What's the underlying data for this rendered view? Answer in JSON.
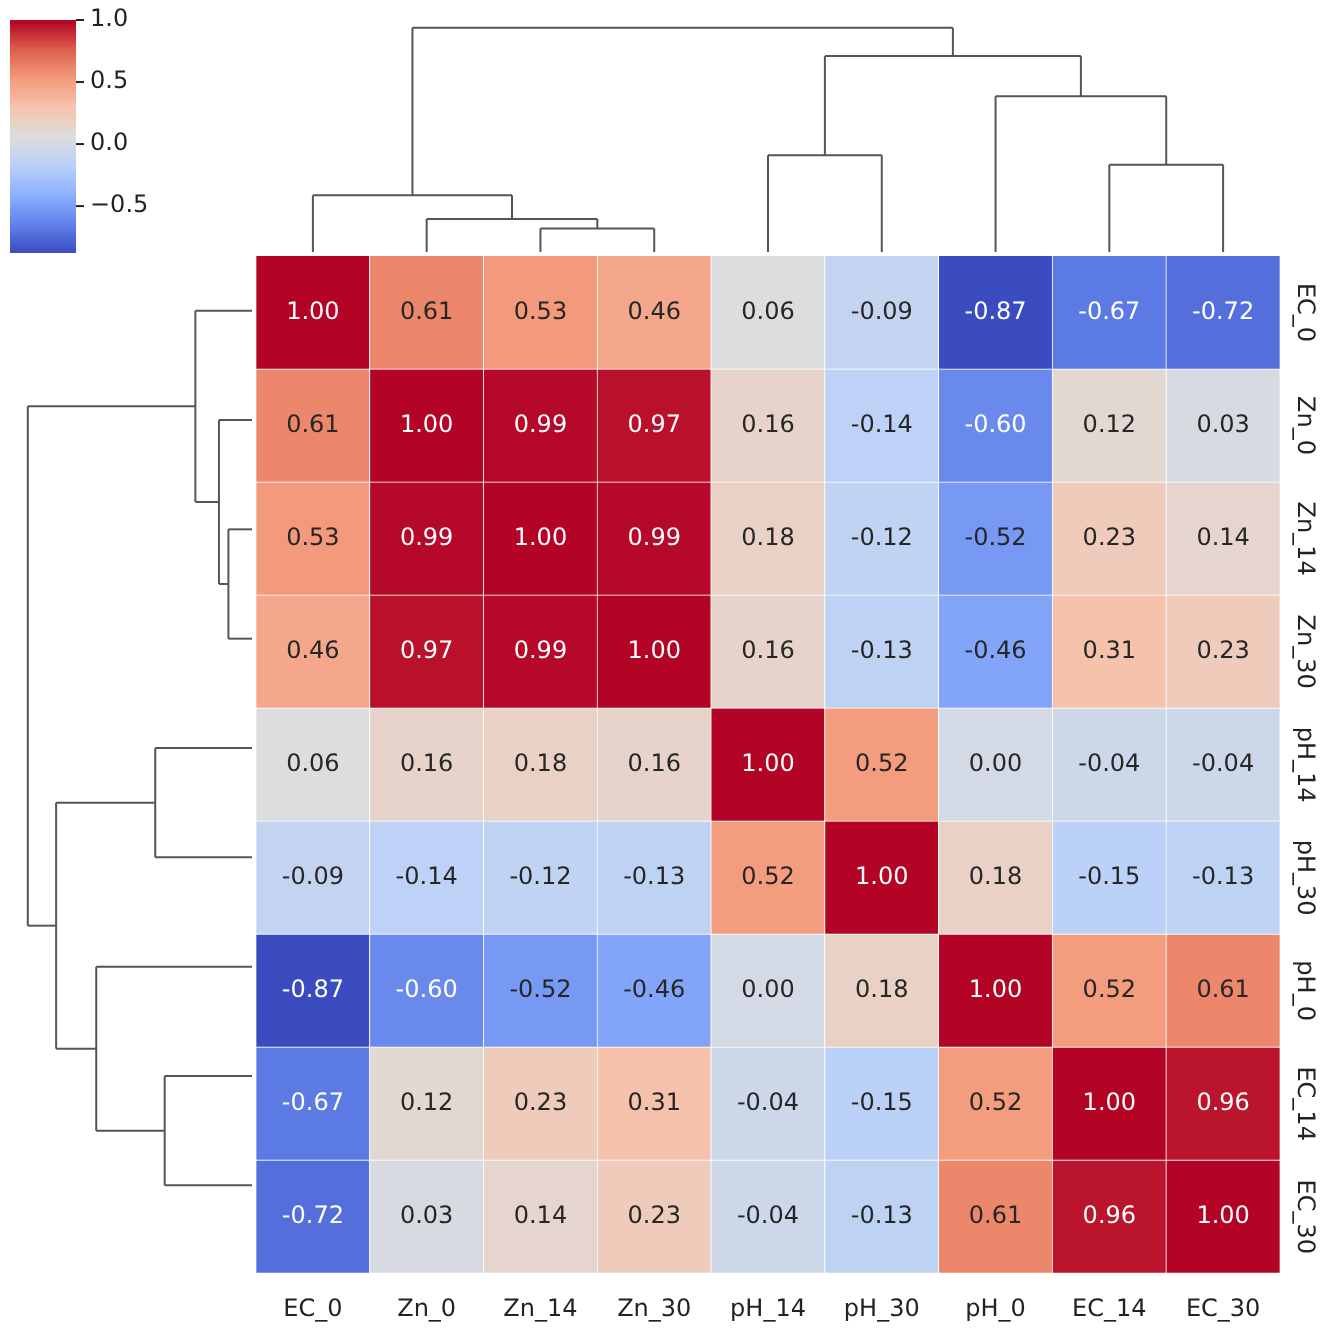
{
  "chart_data": {
    "type": "heatmap",
    "categories": [
      "EC_0",
      "Zn_0",
      "Zn_14",
      "Zn_30",
      "pH_14",
      "pH_30",
      "pH_0",
      "EC_14",
      "EC_30"
    ],
    "y_categories": [
      "EC_0",
      "Zn_0",
      "Zn_14",
      "Zn_30",
      "pH_14",
      "pH_30",
      "pH_0",
      "EC_14",
      "EC_30"
    ],
    "cells": [
      [
        1.0,
        0.61,
        0.53,
        0.46,
        0.06,
        -0.09,
        -0.87,
        -0.67,
        -0.72
      ],
      [
        0.61,
        1.0,
        0.99,
        0.97,
        0.16,
        -0.14,
        -0.6,
        0.12,
        0.03
      ],
      [
        0.53,
        0.99,
        1.0,
        0.99,
        0.18,
        -0.12,
        -0.52,
        0.23,
        0.14
      ],
      [
        0.46,
        0.97,
        0.99,
        1.0,
        0.16,
        -0.13,
        -0.46,
        0.31,
        0.23
      ],
      [
        0.06,
        0.16,
        0.18,
        0.16,
        1.0,
        0.52,
        0.0,
        -0.04,
        -0.04
      ],
      [
        -0.09,
        -0.14,
        -0.12,
        -0.13,
        0.52,
        1.0,
        0.18,
        -0.15,
        -0.13
      ],
      [
        -0.87,
        -0.6,
        -0.52,
        -0.46,
        0.0,
        0.18,
        1.0,
        0.52,
        0.61
      ],
      [
        -0.67,
        0.12,
        0.23,
        0.31,
        -0.04,
        -0.15,
        0.52,
        1.0,
        0.96
      ],
      [
        -0.72,
        0.03,
        0.14,
        0.23,
        -0.04,
        -0.13,
        0.61,
        0.96,
        1.0
      ]
    ],
    "cell_labels": [
      [
        "1.00",
        "0.61",
        "0.53",
        "0.46",
        "0.06",
        "-0.09",
        "-0.87",
        "-0.67",
        "-0.72"
      ],
      [
        "0.61",
        "1.00",
        "0.99",
        "0.97",
        "0.16",
        "-0.14",
        "-0.60",
        "0.12",
        "0.03"
      ],
      [
        "0.53",
        "0.99",
        "1.00",
        "0.99",
        "0.18",
        "-0.12",
        "-0.52",
        "0.23",
        "0.14"
      ],
      [
        "0.46",
        "0.97",
        "0.99",
        "1.00",
        "0.16",
        "-0.13",
        "-0.46",
        "0.31",
        "0.23"
      ],
      [
        "0.06",
        "0.16",
        "0.18",
        "0.16",
        "1.00",
        "0.52",
        "0.00",
        "-0.04",
        "-0.04"
      ],
      [
        "-0.09",
        "-0.14",
        "-0.12",
        "-0.13",
        "0.52",
        "1.00",
        "0.18",
        "-0.15",
        "-0.13"
      ],
      [
        "-0.87",
        "-0.60",
        "-0.52",
        "-0.46",
        "0.00",
        "0.18",
        "1.00",
        "0.52",
        "0.61"
      ],
      [
        "-0.67",
        "0.12",
        "0.23",
        "0.31",
        "-0.04",
        "-0.15",
        "0.52",
        "1.00",
        "0.96"
      ],
      [
        "-0.72",
        "0.03",
        "0.14",
        "0.23",
        "-0.04",
        "-0.13",
        "0.61",
        "0.96",
        "1.00"
      ]
    ],
    "clim": [
      -0.87,
      1
    ],
    "cticks": [
      {
        "value": -0.5,
        "label": "−0.5"
      },
      {
        "value": 0,
        "label": "0.0"
      },
      {
        "value": 0.5,
        "label": "0.5"
      },
      {
        "value": 1,
        "label": "1.0"
      }
    ],
    "data_labels": true,
    "grid": false,
    "legend": false
  }
}
